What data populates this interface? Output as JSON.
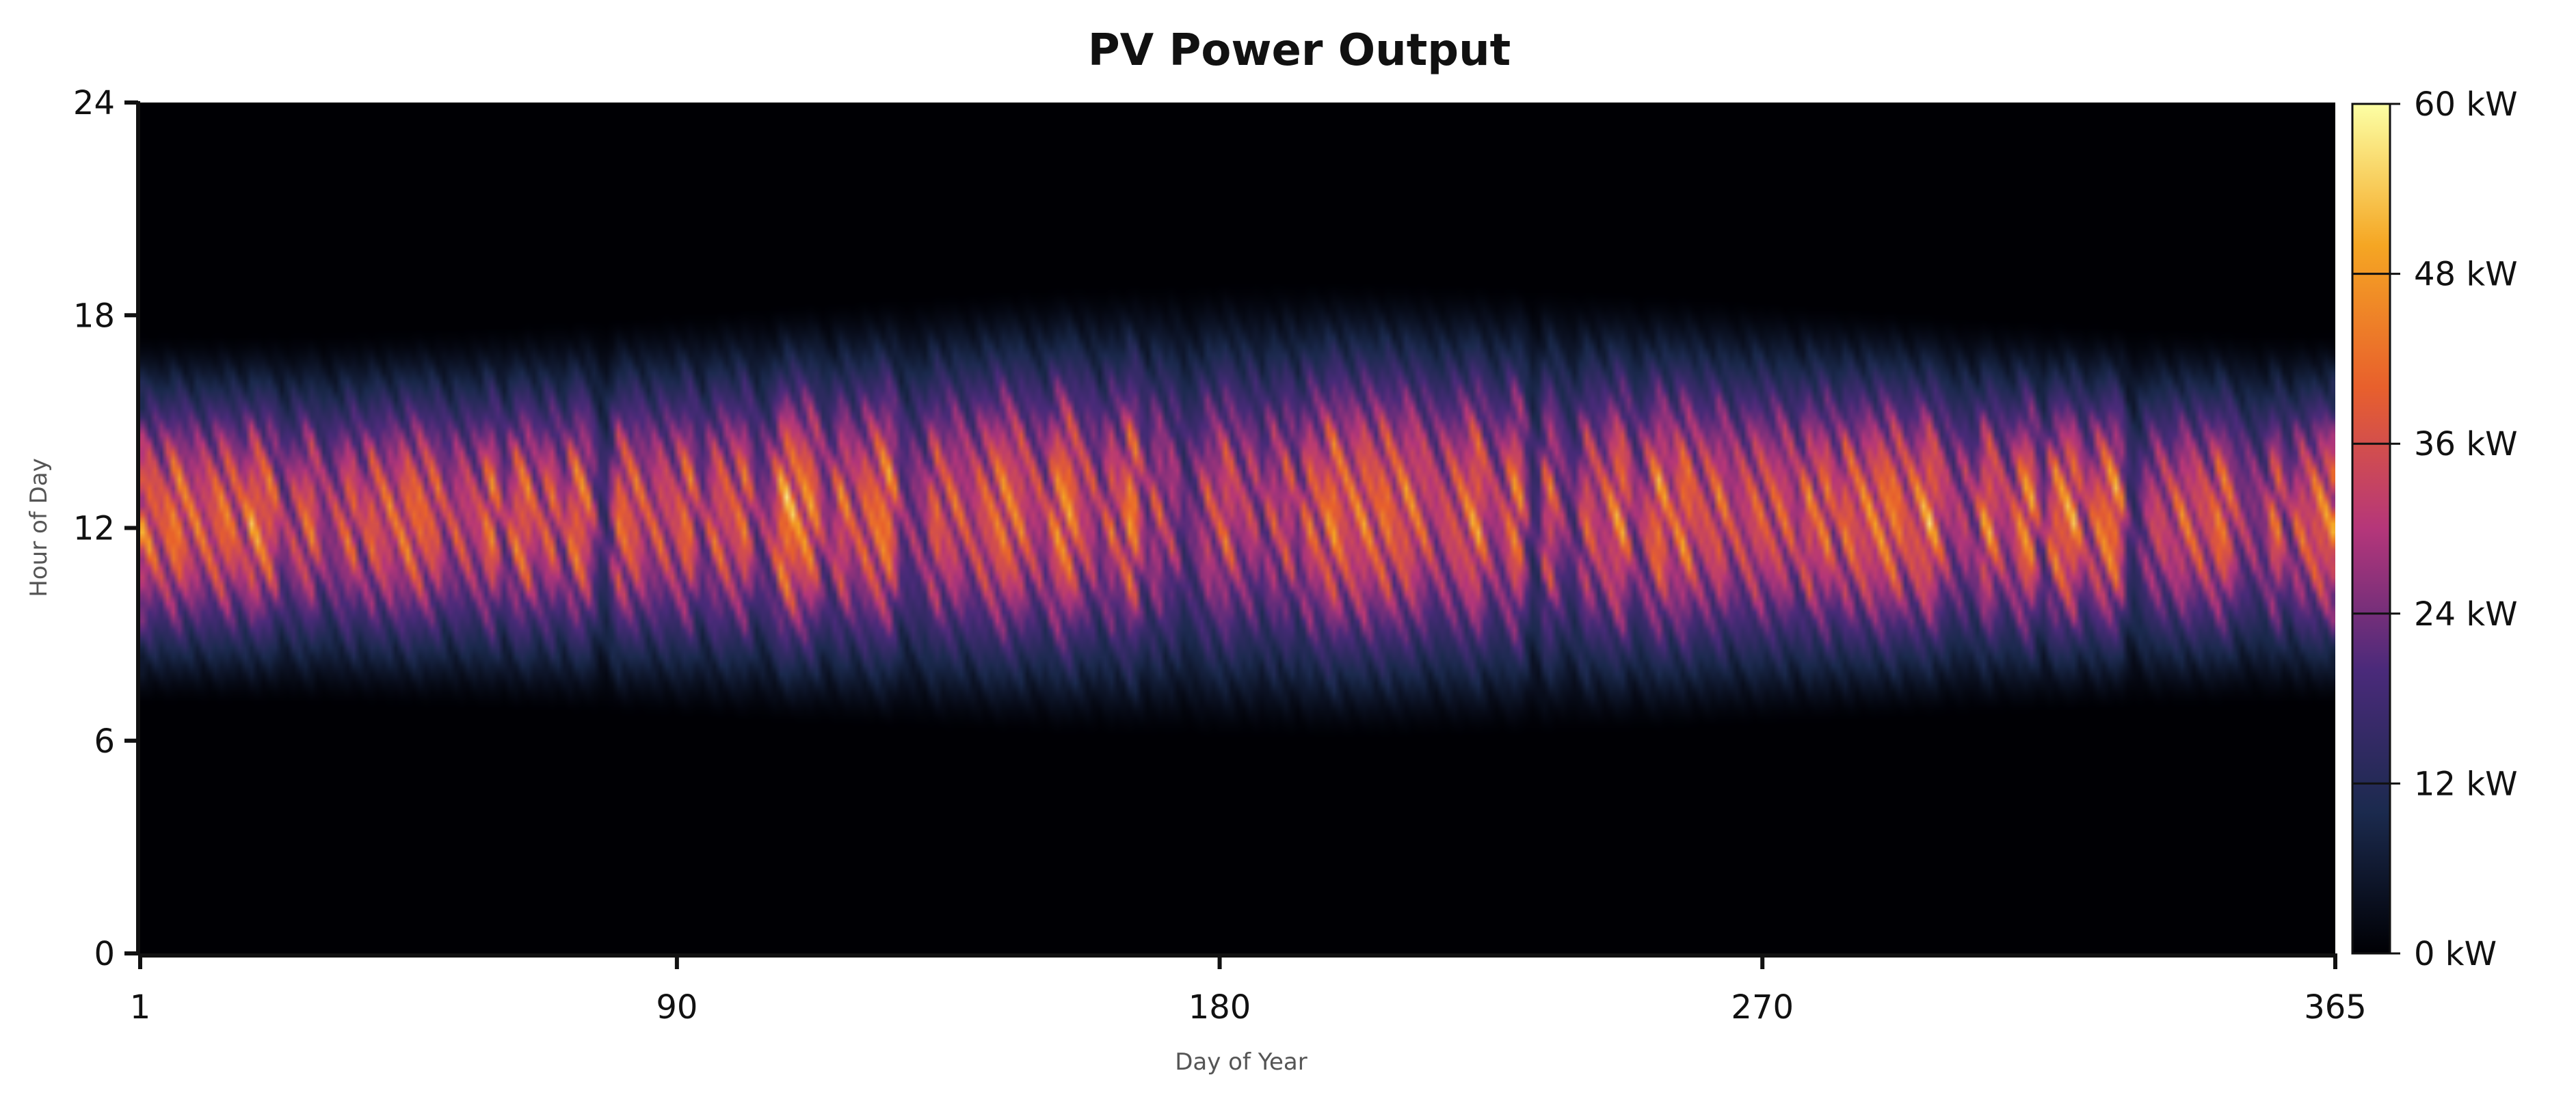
{
  "chart_data": {
    "type": "heatmap",
    "title": "PV Power Output",
    "xlabel": "Day of Year",
    "ylabel": "Hour of Day",
    "x_range": [
      1,
      365
    ],
    "y_range": [
      0,
      24
    ],
    "x_ticks": [
      "1",
      "90",
      "180",
      "270",
      "365"
    ],
    "x_tick_values": [
      1,
      90,
      180,
      270,
      365
    ],
    "y_ticks": [
      "0",
      "6",
      "12",
      "18",
      "24"
    ],
    "y_tick_values": [
      0,
      6,
      12,
      18,
      24
    ],
    "colorbar": {
      "range": [
        0,
        60
      ],
      "unit": "kW",
      "ticks": [
        "0 kW",
        "12 kW",
        "24 kW",
        "36 kW",
        "48 kW",
        "60 kW"
      ],
      "tick_values": [
        0,
        12,
        24,
        36,
        48,
        60
      ],
      "colormap": [
        "#000004",
        "#1b2a4e",
        "#4a2a7a",
        "#b5367a",
        "#e8602c",
        "#f5a623",
        "#fcffa4"
      ]
    },
    "value_profile": {
      "peak_hour": 12.5,
      "sunrise_hour_by_season": {
        "winter": 7,
        "summer": 6
      },
      "sunset_hour_by_season": {
        "winter": 17.5,
        "summer": 19
      },
      "typical_peak_kW": 48,
      "max_kW": 60
    },
    "grid": false
  }
}
